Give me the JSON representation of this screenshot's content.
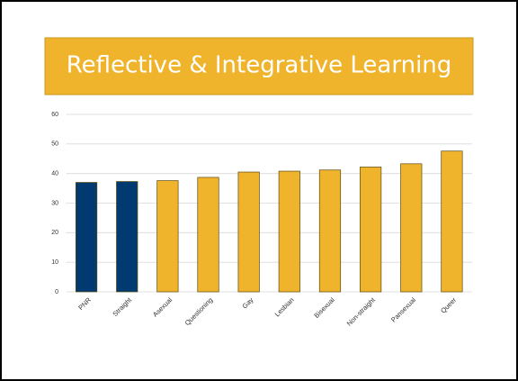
{
  "chart_data": {
    "type": "bar",
    "title": "Reflective & Integrative Learning",
    "categories": [
      "PNR",
      "Straight",
      "Asexual",
      "Questioning",
      "Gay",
      "Lesbian",
      "Bisexual",
      "Non-straight",
      "Pansexual",
      "Queer"
    ],
    "values": [
      37,
      37.3,
      37.6,
      38.7,
      40.5,
      40.8,
      41.2,
      42.2,
      43.3,
      47.6
    ],
    "colors": [
      "#003a70",
      "#003a70",
      "#f0b42c",
      "#f0b42c",
      "#f0b42c",
      "#f0b42c",
      "#f0b42c",
      "#f0b42c",
      "#f0b42c",
      "#f0b42c"
    ],
    "ylim": [
      0,
      60
    ],
    "yticks": [
      0,
      10,
      20,
      30,
      40,
      50,
      60
    ],
    "grid": true
  }
}
